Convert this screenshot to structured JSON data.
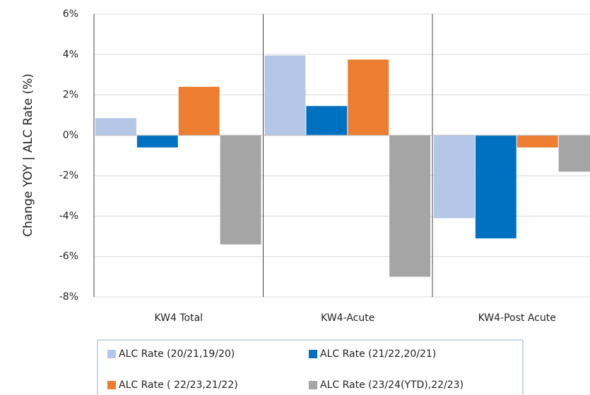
{
  "chart_data": {
    "type": "bar",
    "ylabel": "Change YOY | ALC Rate (%)",
    "categories": [
      "KW4 Total",
      "KW4-Acute",
      "KW4-Post Acute"
    ],
    "series": [
      {
        "name": "ALC Rate (20/21,19/20)",
        "color": "#b4c7e7",
        "values": [
          0.85,
          3.95,
          -4.1
        ]
      },
      {
        "name": "ALC Rate (21/22,20/21)",
        "color": "#0070c0",
        "values": [
          -0.6,
          1.45,
          -5.1
        ]
      },
      {
        "name": "ALC Rate ( 22/23,21/22)",
        "color": "#ed7d31",
        "values": [
          2.4,
          3.75,
          -0.6
        ]
      },
      {
        "name": "ALC Rate (23/24(YTD),22/23)",
        "color": "#a5a5a5",
        "values": [
          -5.4,
          -7.0,
          -1.8
        ]
      }
    ],
    "ylim": [
      -8,
      6
    ],
    "yticks": [
      {
        "value": -8,
        "label": "-8%"
      },
      {
        "value": -6,
        "label": "-6%"
      },
      {
        "value": -4,
        "label": "-4%"
      },
      {
        "value": -2,
        "label": "-2%"
      },
      {
        "value": 0,
        "label": "0%"
      },
      {
        "value": 2,
        "label": "2%"
      },
      {
        "value": 4,
        "label": "4%"
      },
      {
        "value": 6,
        "label": "6%"
      }
    ],
    "grid": true,
    "legend": "bottom"
  }
}
